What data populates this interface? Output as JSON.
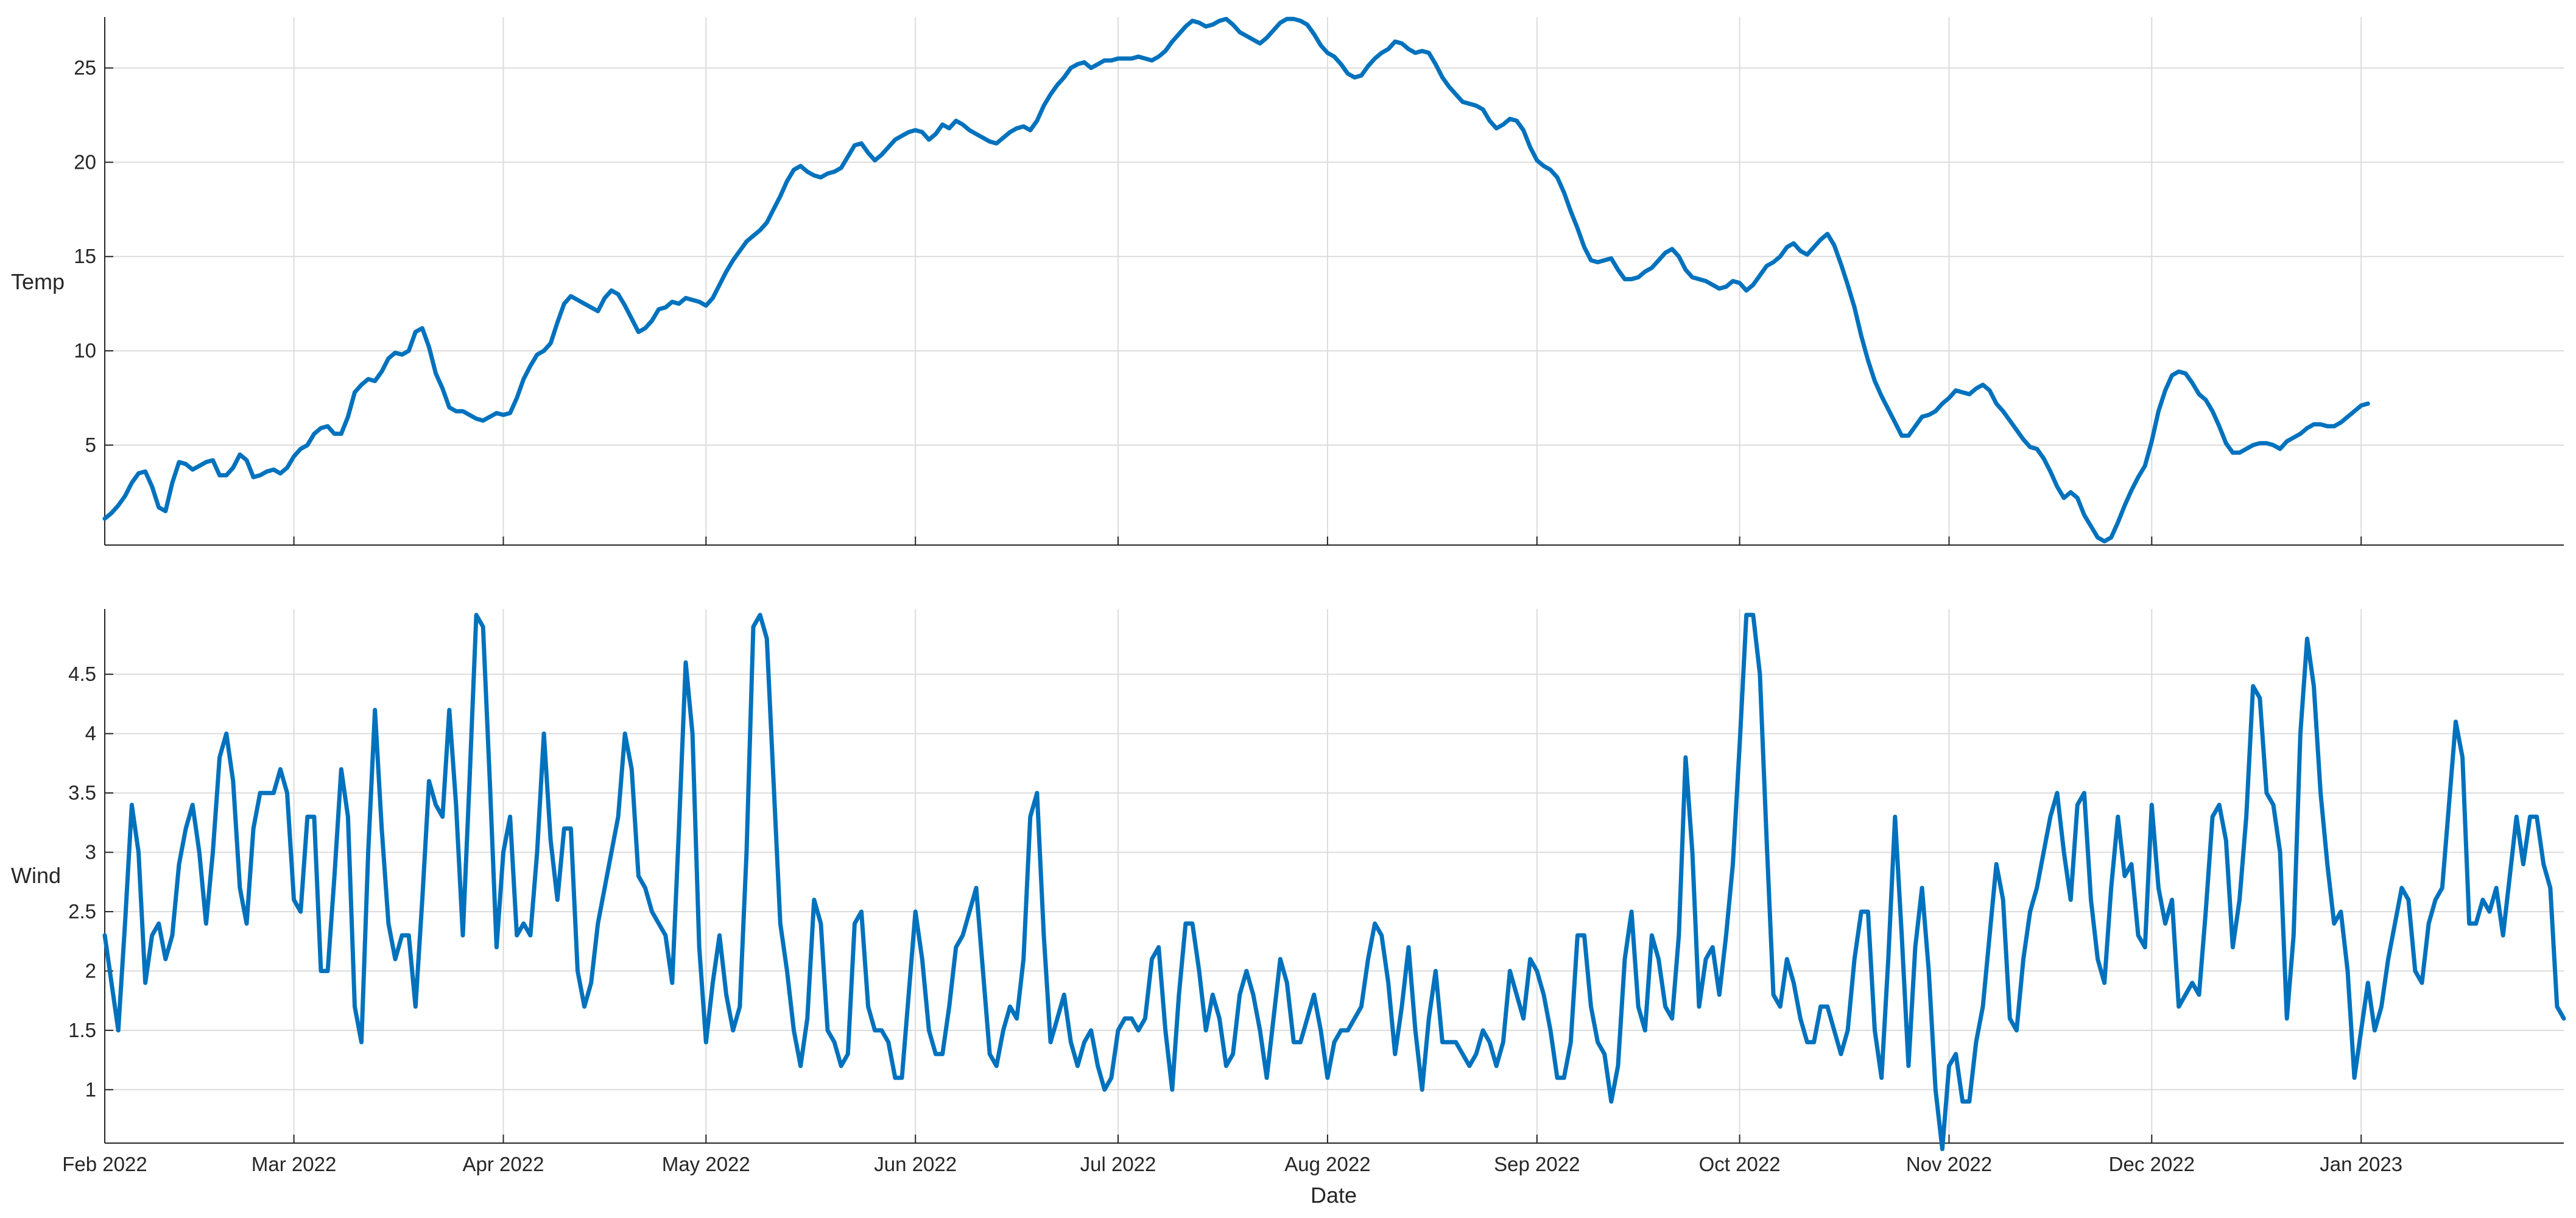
{
  "chart_data": [
    {
      "type": "line",
      "xlabel": "",
      "ylabel": "Temp",
      "x_start": "2022-02-01",
      "x_end": "2023-01-31",
      "xlim": [
        "2022-02-01",
        "2023-01-31"
      ],
      "ylim": [
        -0.3,
        27.7
      ],
      "yticks": [
        5,
        10,
        15,
        20,
        25
      ],
      "grid": true,
      "x_tick_labels_shown": false,
      "series": [
        {
          "color": "#0072bd",
          "values": [
            [
              1.1,
              1.4,
              1.8,
              2.3,
              3.0,
              3.5,
              3.6,
              2.8,
              1.7,
              1.5,
              3.0,
              4.1,
              4.0,
              3.7,
              3.9,
              4.1,
              4.2,
              3.4,
              3.4,
              3.8,
              4.5,
              4.2,
              3.3,
              3.4,
              3.6,
              3.7,
              3.5,
              3.8,
              4.4
            ],
            [
              4.8,
              5.0,
              5.6,
              5.9,
              6.0,
              5.6,
              5.6,
              6.5,
              7.8,
              8.2,
              8.5,
              8.4,
              8.9,
              9.6,
              9.9,
              9.8,
              10.0,
              11.0,
              11.2,
              10.2,
              8.8,
              8.0,
              7.0,
              6.8,
              6.8,
              6.6,
              6.4,
              6.3,
              6.5,
              6.7,
              6.6
            ],
            [
              6.7,
              7.5,
              8.5,
              9.2,
              9.8,
              10.0,
              10.4,
              11.5,
              12.5,
              12.9,
              12.7,
              12.5,
              12.3,
              12.1,
              12.8,
              13.2,
              13.0,
              12.4,
              11.7,
              11.0,
              11.2,
              11.6,
              12.2,
              12.3,
              12.6,
              12.5,
              12.8,
              12.7,
              12.6,
              12.4
            ],
            [
              12.8,
              13.5,
              14.2,
              14.8,
              15.3,
              15.8,
              16.1,
              16.4,
              16.8,
              17.5,
              18.2,
              19.0,
              19.6,
              19.8,
              19.5,
              19.3,
              19.2,
              19.4,
              19.5,
              19.7,
              20.3,
              20.9,
              21.0,
              20.5,
              20.1,
              20.4,
              20.8,
              21.2,
              21.4,
              21.6,
              21.7
            ],
            [
              21.6,
              21.2,
              21.5,
              22.0,
              21.8,
              22.2,
              22.0,
              21.7,
              21.5,
              21.3,
              21.1,
              21.0,
              21.3,
              21.6,
              21.8,
              21.9,
              21.7,
              22.2,
              23.0,
              23.6,
              24.1,
              24.5,
              25.0,
              25.2,
              25.3,
              25.0,
              25.2,
              25.4,
              25.4,
              25.5
            ],
            [
              25.5,
              25.5,
              25.6,
              25.5,
              25.4,
              25.6,
              25.9,
              26.4,
              26.8,
              27.2,
              27.5,
              27.4,
              27.2,
              27.3,
              27.5,
              27.6,
              27.3,
              26.9,
              26.7,
              26.5,
              26.3,
              26.6,
              27.0,
              27.4,
              27.6,
              27.6,
              27.5,
              27.3,
              26.8,
              26.2,
              25.8
            ],
            [
              25.6,
              25.2,
              24.7,
              24.5,
              24.6,
              25.1,
              25.5,
              25.8,
              26.0,
              26.4,
              26.3,
              26.0,
              25.8,
              25.9,
              25.8,
              25.2,
              24.5,
              24.0,
              23.6,
              23.2,
              23.1,
              23.0,
              22.8,
              22.2,
              21.8,
              22.0,
              22.3,
              22.2,
              21.7,
              20.8,
              20.1
            ],
            [
              19.8,
              19.6,
              19.2,
              18.4,
              17.4,
              16.5,
              15.5,
              14.8,
              14.7,
              14.8,
              14.9,
              14.3,
              13.8,
              13.8,
              13.9,
              14.2,
              14.4,
              14.8,
              15.2,
              15.4,
              15.0,
              14.3,
              13.9,
              13.8,
              13.7,
              13.5,
              13.3,
              13.4,
              13.7,
              13.6
            ],
            [
              13.2,
              13.5,
              14.0,
              14.5,
              14.7,
              15.0,
              15.5,
              15.7,
              15.3,
              15.1,
              15.5,
              15.9,
              16.2,
              15.6,
              14.6,
              13.5,
              12.3,
              10.8,
              9.5,
              8.4,
              7.6,
              6.9,
              6.2,
              5.5,
              5.5,
              6.0,
              6.5,
              6.6,
              6.8,
              7.2,
              7.5
            ],
            [
              7.9,
              7.8,
              7.7,
              8.0,
              8.2,
              7.9,
              7.2,
              6.8,
              6.3,
              5.8,
              5.3,
              4.9,
              4.8,
              4.3,
              3.6,
              2.8,
              2.2,
              2.5,
              2.2,
              1.3,
              0.7,
              0.1,
              -0.1,
              0.1,
              0.9,
              1.8,
              2.6,
              3.3,
              3.9,
              5.2,
              6.8
            ],
            [
              7.9,
              8.7,
              8.9,
              8.8,
              8.3,
              7.7,
              7.4,
              6.8,
              6.0,
              5.1,
              4.6,
              4.6,
              4.8,
              5.0,
              5.1,
              5.1,
              5.0,
              4.8,
              5.2,
              5.4,
              5.6,
              5.9,
              6.1,
              6.1,
              6.0,
              6.0,
              6.2,
              6.5,
              6.8,
              7.1,
              7.2
            ]
          ]
        }
      ]
    },
    {
      "type": "line",
      "xlabel": "Date",
      "ylabel": "Wind",
      "x_start": "2022-02-01",
      "x_end": "2023-01-31",
      "xlim": [
        "2022-02-01",
        "2023-01-31"
      ],
      "ylim": [
        0.55,
        5.05
      ],
      "yticks": [
        1,
        1.5,
        2,
        2.5,
        3,
        3.5,
        4,
        4.5
      ],
      "xtick_labels": [
        "Feb 2022",
        "Mar 2022",
        "Apr 2022",
        "May 2022",
        "Jun 2022",
        "Jul 2022",
        "Aug 2022",
        "Sep 2022",
        "Oct 2022",
        "Nov 2022",
        "Dec 2022",
        "Jan 2023"
      ],
      "grid": true,
      "series": [
        {
          "color": "#0072bd",
          "values": [
            [
              2.3,
              1.9,
              1.5,
              2.4,
              3.4,
              3.0,
              1.9,
              2.3,
              2.4,
              2.1,
              2.3,
              2.9,
              3.2,
              3.4,
              3.0,
              2.4,
              3.0,
              3.8,
              4.0,
              3.6,
              2.7,
              2.4,
              3.2,
              3.5,
              3.5,
              3.5,
              3.7,
              3.5,
              2.6
            ],
            [
              2.5,
              3.3,
              3.3,
              2.0,
              2.0,
              2.8,
              3.7,
              3.3,
              1.7,
              1.4,
              3.0,
              4.2,
              3.2,
              2.4,
              2.1,
              2.3,
              2.3,
              1.7,
              2.6,
              3.6,
              3.4,
              3.3,
              4.2,
              3.4,
              2.3,
              3.6,
              5.0,
              4.9,
              3.6,
              2.2,
              3.0
            ],
            [
              3.3,
              2.3,
              2.4,
              2.3,
              3.0,
              4.0,
              3.1,
              2.6,
              3.2,
              3.2,
              2.0,
              1.7,
              1.9,
              2.4,
              2.7,
              3.0,
              3.3,
              4.0,
              3.7,
              2.8,
              2.7,
              2.5,
              2.4,
              2.3,
              1.9,
              3.2,
              4.6,
              4.0,
              2.2,
              1.4
            ],
            [
              1.9,
              2.3,
              1.8,
              1.5,
              1.7,
              3.0,
              4.9,
              5.0,
              4.8,
              3.6,
              2.4,
              2.0,
              1.5,
              1.2,
              1.6,
              2.6,
              2.4,
              1.5,
              1.4,
              1.2,
              1.3,
              2.4,
              2.5,
              1.7,
              1.5,
              1.5,
              1.4,
              1.1,
              1.1,
              1.8,
              2.5
            ],
            [
              2.1,
              1.5,
              1.3,
              1.3,
              1.7,
              2.2,
              2.3,
              2.5,
              2.7,
              2.0,
              1.3,
              1.2,
              1.5,
              1.7,
              1.6,
              2.1,
              3.3,
              3.5,
              2.3,
              1.4,
              1.6,
              1.8,
              1.4,
              1.2,
              1.4,
              1.5,
              1.2,
              1.0,
              1.1,
              1.5
            ],
            [
              1.6,
              1.6,
              1.5,
              1.6,
              2.1,
              2.2,
              1.5,
              1.0,
              1.8,
              2.4,
              2.4,
              2.0,
              1.5,
              1.8,
              1.6,
              1.2,
              1.3,
              1.8,
              2.0,
              1.8,
              1.5,
              1.1,
              1.6,
              2.1,
              1.9,
              1.4,
              1.4,
              1.6,
              1.8,
              1.5,
              1.1
            ],
            [
              1.4,
              1.5,
              1.5,
              1.6,
              1.7,
              2.1,
              2.4,
              2.3,
              1.9,
              1.3,
              1.7,
              2.2,
              1.5,
              1.0,
              1.6,
              2.0,
              1.4,
              1.4,
              1.4,
              1.3,
              1.2,
              1.3,
              1.5,
              1.4,
              1.2,
              1.4,
              2.0,
              1.8,
              1.6,
              2.1,
              2.0
            ],
            [
              1.8,
              1.5,
              1.1,
              1.1,
              1.4,
              2.3,
              2.3,
              1.7,
              1.4,
              1.3,
              0.9,
              1.2,
              2.1,
              2.5,
              1.7,
              1.5,
              2.3,
              2.1,
              1.7,
              1.6,
              2.3,
              3.8,
              3.0,
              1.7,
              2.1,
              2.2,
              1.8,
              2.3,
              2.9,
              3.9
            ],
            [
              5.0,
              5.0,
              4.5,
              3.1,
              1.8,
              1.7,
              2.1,
              1.9,
              1.6,
              1.4,
              1.4,
              1.7,
              1.7,
              1.5,
              1.3,
              1.5,
              2.1,
              2.5,
              2.5,
              1.5,
              1.1,
              2.1,
              3.3,
              2.3,
              1.2,
              2.2,
              2.7,
              2.0,
              1.0,
              0.5,
              1.2
            ],
            [
              1.3,
              0.9,
              0.9,
              1.4,
              1.7,
              2.3,
              2.9,
              2.6,
              1.6,
              1.5,
              2.1,
              2.5,
              2.7,
              3.0,
              3.3,
              3.5,
              3.0,
              2.6,
              3.4,
              3.5,
              2.6,
              2.1,
              1.9,
              2.7,
              3.3,
              2.8,
              2.9,
              2.3,
              2.2,
              3.4
            ],
            [
              2.7,
              2.4,
              2.6,
              1.7,
              1.8,
              1.9,
              1.8,
              2.5,
              3.3,
              3.4,
              3.1,
              2.2,
              2.6,
              3.3,
              4.4,
              4.3,
              3.5,
              3.4,
              3.0,
              1.6,
              2.3,
              4.0,
              4.8,
              4.4,
              3.5,
              2.9,
              2.4,
              2.5,
              2.0,
              1.1,
              1.5
            ],
            [
              1.9,
              1.5,
              1.7,
              2.1,
              2.4,
              2.7,
              2.6,
              2.0,
              1.9,
              2.4,
              2.6,
              2.7,
              3.4,
              4.1,
              3.8,
              2.4,
              2.4,
              2.6,
              2.5,
              2.7,
              2.3,
              2.8,
              3.3,
              2.9,
              3.3,
              3.3,
              2.9,
              2.7,
              1.7,
              1.6
            ]
          ]
        }
      ]
    }
  ]
}
